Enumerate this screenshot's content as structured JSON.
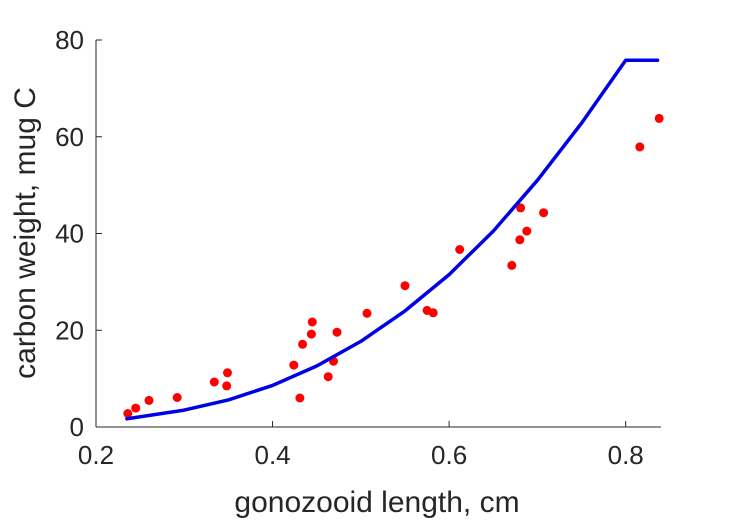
{
  "chart_data": {
    "type": "scatter",
    "xlabel": "gonozooid length, cm",
    "ylabel": "carbon weight, mug C",
    "xlim": [
      0.2,
      0.84
    ],
    "ylim": [
      0,
      80
    ],
    "x_ticks": [
      "0.2",
      "0.4",
      "0.6",
      "0.8"
    ],
    "x_tick_values": [
      0.2,
      0.4,
      0.6,
      0.8
    ],
    "y_ticks": [
      "0",
      "20",
      "40",
      "60",
      "80"
    ],
    "y_tick_values": [
      0,
      20,
      40,
      60,
      80
    ],
    "grid": false,
    "series": [
      {
        "type": "scatter",
        "color": "#ff0000",
        "points": [
          [
            0.236,
            2.8
          ],
          [
            0.245,
            3.9
          ],
          [
            0.26,
            5.5
          ],
          [
            0.292,
            6.1
          ],
          [
            0.334,
            9.3
          ],
          [
            0.348,
            8.5
          ],
          [
            0.349,
            11.2
          ],
          [
            0.424,
            12.8
          ],
          [
            0.431,
            6.0
          ],
          [
            0.434,
            17.1
          ],
          [
            0.444,
            19.2
          ],
          [
            0.445,
            21.7
          ],
          [
            0.463,
            10.4
          ],
          [
            0.469,
            13.6
          ],
          [
            0.473,
            19.6
          ],
          [
            0.507,
            23.5
          ],
          [
            0.55,
            29.2
          ],
          [
            0.575,
            24.1
          ],
          [
            0.582,
            23.6
          ],
          [
            0.612,
            36.7
          ],
          [
            0.671,
            33.4
          ],
          [
            0.68,
            38.7
          ],
          [
            0.681,
            45.3
          ],
          [
            0.688,
            40.5
          ],
          [
            0.707,
            44.3
          ],
          [
            0.816,
            57.9
          ],
          [
            0.838,
            63.8
          ]
        ]
      },
      {
        "type": "line",
        "color": "#0000e6",
        "points": [
          [
            0.235,
            1.7
          ],
          [
            0.3,
            3.5
          ],
          [
            0.35,
            5.6
          ],
          [
            0.4,
            8.6
          ],
          [
            0.45,
            12.6
          ],
          [
            0.5,
            17.7
          ],
          [
            0.55,
            24.0
          ],
          [
            0.6,
            31.5
          ],
          [
            0.65,
            40.5
          ],
          [
            0.7,
            51.0
          ],
          [
            0.75,
            62.8
          ],
          [
            0.8,
            75.8
          ],
          [
            0.836,
            75.8
          ]
        ]
      }
    ]
  }
}
